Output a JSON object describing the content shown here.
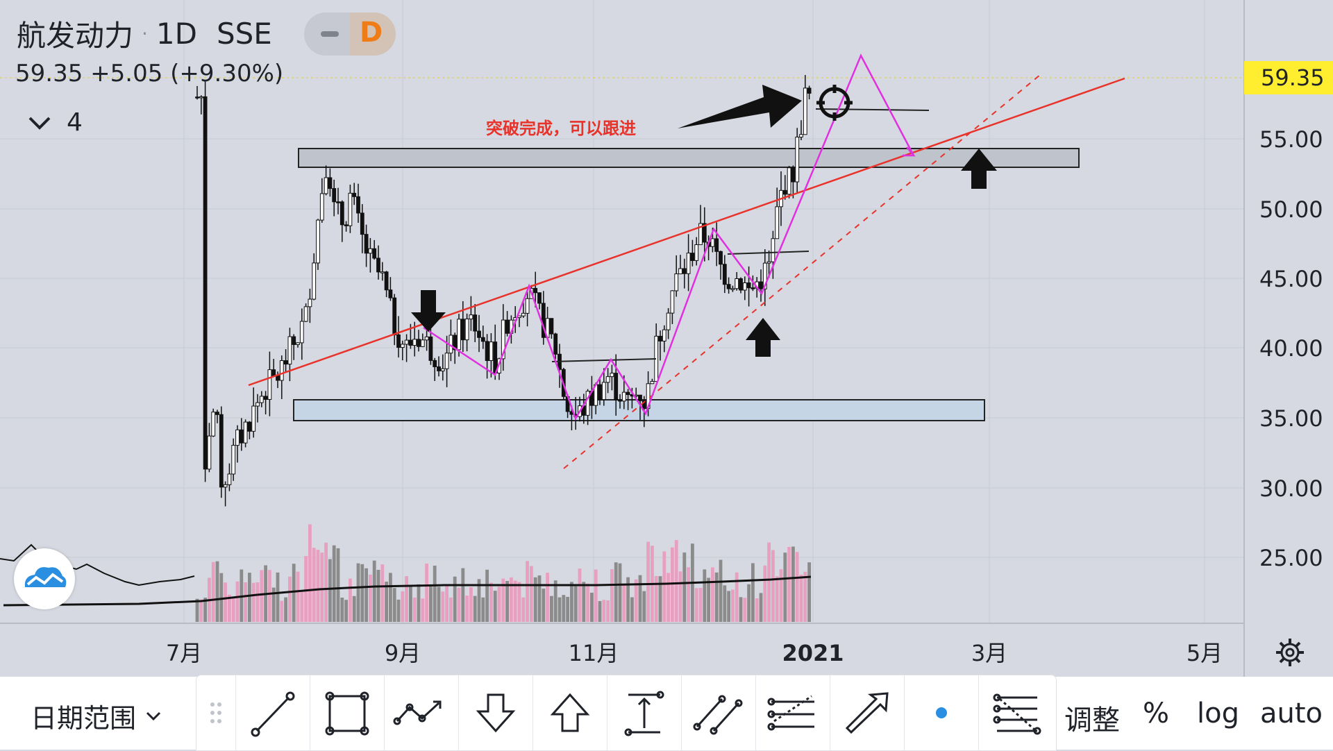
{
  "header": {
    "symbol": "航发动力",
    "interval": "1D",
    "exchange": "SSE",
    "mode_letter": "D",
    "quote": "59.35  +5.05 (+9.30%)",
    "layers_count": "4"
  },
  "price_axis": {
    "labels": [
      "55.00",
      "50.00",
      "45.00",
      "40.00",
      "35.00",
      "30.00",
      "25.00"
    ],
    "last_price": "59.35"
  },
  "time_axis": {
    "labels": [
      "7月",
      "9月",
      "11月",
      "2021",
      "3月",
      "5月"
    ]
  },
  "annotation": {
    "text": "突破完成，可以跟进"
  },
  "bottom_bar": {
    "date_range_label": "日期范围",
    "adjust_label": "调整",
    "percent_label": "%",
    "log_label": "log",
    "auto_label": "auto"
  },
  "toolbar": {
    "tools": [
      "grip-icon",
      "trend-line-icon",
      "rectangle-icon",
      "path-icon",
      "arrow-down-icon",
      "arrow-up-icon",
      "vertical-range-icon",
      "parallel-channel-icon",
      "regression-icon",
      "arrow-icon",
      "dot-icon",
      "fib-icon"
    ]
  },
  "colors": {
    "background": "#d6d9e1",
    "up_candle": "#ffffff",
    "down_candle": "#111111",
    "trend_line": "#e8322a",
    "zigzag": "#e030e0",
    "last_price": "#ffee30",
    "volume_up": "#e8a0c0",
    "volume_down": "#8b8b8b"
  }
}
